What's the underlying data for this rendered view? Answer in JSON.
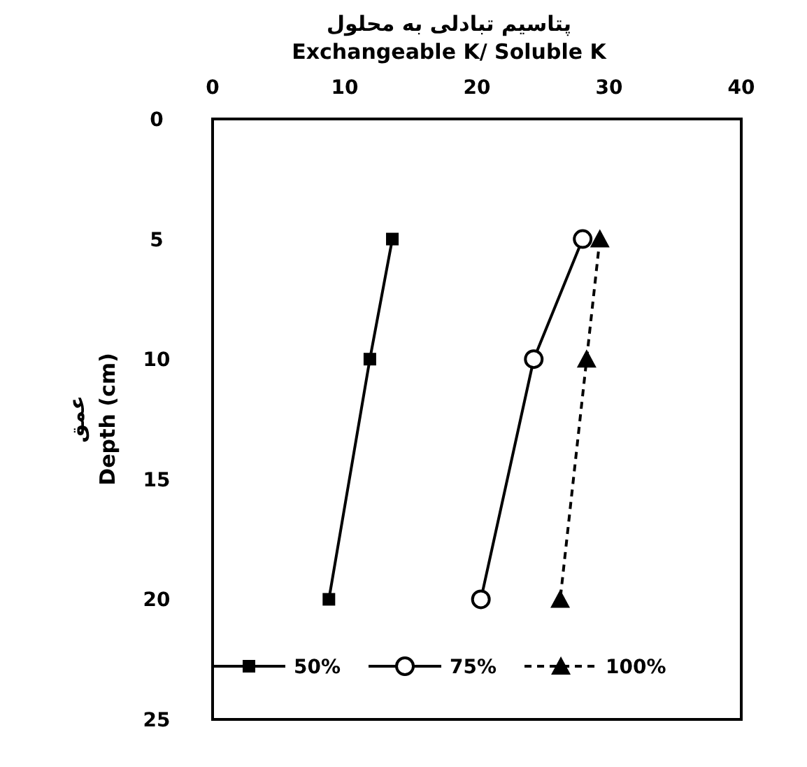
{
  "chart_data": {
    "type": "line",
    "xlabel": "پتاسیم تبادلی به محلول\nExchangeable K/ Soluble K",
    "ylabel": "عمق\nDepth (cm)",
    "xlim": [
      0,
      40
    ],
    "xticks": [
      0,
      10,
      20,
      30,
      40
    ],
    "ylim": [
      25,
      0
    ],
    "yticks": [
      0,
      5,
      10,
      15,
      20,
      25
    ],
    "grid": false,
    "legend": "bottom",
    "series": [
      {
        "name": "50%",
        "color": "#000000",
        "x": [
          13.6,
          11.9,
          8.8
        ],
        "values": [
          5,
          10,
          20
        ],
        "marker": "square",
        "line_style": "solid"
      },
      {
        "name": "75%",
        "color": "#000000",
        "x": [
          28.0,
          24.3,
          20.3
        ],
        "values": [
          5,
          10,
          20
        ],
        "marker": "circle",
        "line_style": "solid"
      },
      {
        "name": "100%",
        "color": "#000000",
        "x": [
          29.3,
          28.3,
          26.3
        ],
        "values": [
          5,
          10,
          20
        ],
        "marker": "triangle",
        "line_style": "dashed"
      }
    ]
  }
}
